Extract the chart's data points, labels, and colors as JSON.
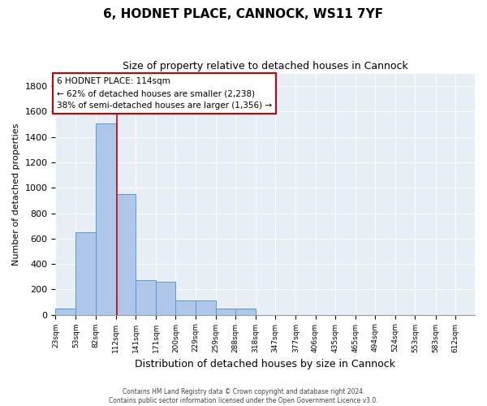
{
  "title": "6, HODNET PLACE, CANNOCK, WS11 7YF",
  "subtitle": "Size of property relative to detached houses in Cannock",
  "xlabel": "Distribution of detached houses by size in Cannock",
  "ylabel": "Number of detached properties",
  "annotation_line1": "6 HODNET PLACE: 114sqm",
  "annotation_line2": "← 62% of detached houses are smaller (2,238)",
  "annotation_line3": "38% of semi-detached houses are larger (1,356) →",
  "bar_left_edges": [
    23,
    53,
    82,
    112,
    141,
    171,
    200,
    229,
    259,
    288,
    318,
    347,
    377,
    406,
    435,
    465,
    494,
    524,
    553,
    583
  ],
  "bar_widths": [
    30,
    29,
    30,
    29,
    30,
    29,
    29,
    30,
    29,
    30,
    29,
    30,
    29,
    29,
    30,
    29,
    30,
    29,
    30,
    29
  ],
  "bar_heights": [
    50,
    650,
    1510,
    950,
    270,
    260,
    115,
    115,
    50,
    50,
    0,
    0,
    0,
    0,
    0,
    0,
    0,
    0,
    0,
    0
  ],
  "ylim": [
    0,
    1900
  ],
  "yticks": [
    0,
    200,
    400,
    600,
    800,
    1000,
    1200,
    1400,
    1600,
    1800
  ],
  "bar_color": "#aec6e8",
  "bar_edge_color": "#5a9ad4",
  "vline_color": "#cc0000",
  "vline_x": 114,
  "annotation_box_color": "#cc0000",
  "background_color": "#e8eef5",
  "footer_line1": "Contains HM Land Registry data © Crown copyright and database right 2024.",
  "footer_line2": "Contains public sector information licensed under the Open Government Licence v3.0.",
  "title_fontsize": 11,
  "subtitle_fontsize": 9,
  "ylabel_fontsize": 8,
  "xlabel_fontsize": 9,
  "tick_label_fontsize": 6.5,
  "ytick_fontsize": 8,
  "annotation_fontsize": 7.5,
  "footer_fontsize": 5.5,
  "categories": [
    "23sqm",
    "53sqm",
    "82sqm",
    "112sqm",
    "141sqm",
    "171sqm",
    "200sqm",
    "229sqm",
    "259sqm",
    "288sqm",
    "318sqm",
    "347sqm",
    "377sqm",
    "406sqm",
    "435sqm",
    "465sqm",
    "494sqm",
    "524sqm",
    "553sqm",
    "583sqm",
    "612sqm"
  ]
}
